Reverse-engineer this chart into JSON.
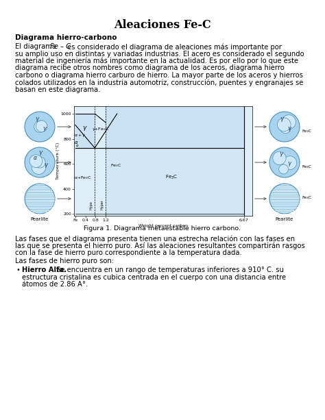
{
  "title": "Aleaciones Fe-C",
  "section_title": "Diagrama hierro-carbono",
  "figure_caption": "Figura 1. Diagrama metaestable hierro carbono.",
  "paragraph2_lines": [
    "Las fases que el diagrama presenta tienen una estrecha relación con las fases en",
    "las que se presenta el hierro puro. Así las aleaciones resultantes compartirán rasgos",
    "con la fase de hierro puro correspondiente a la temperatura dada."
  ],
  "paragraph3": "Las fases de hierro puro son:",
  "bullet_title": "Hierro Alfa.",
  "bullet_text_lines": [
    "Se encuentra en un rango de temperaturas inferiores a 910° C. su",
    "estructura cristalina es cubica centrada en el cuerpo con una distancia entre",
    "átomos de 2.86 A°."
  ],
  "para1_line0_pre": "El diagrama ",
  "para1_line0_italic": "Fe – C",
  "para1_line0_post": " es considerado el diagrama de aleaciones más importante por",
  "para1_lines": [
    "su amplio uso en distintas y variadas industrias. El acero es considerado el segundo",
    "material de ingeniería más importante en la actualidad. Es por ello por lo que este",
    "diagrama recibe otros nombres como diagrama de los aceros, diagrama hierro",
    "carbono o diagrama hierro carburo de hierro. La mayor parte de los aceros y hierros",
    "colados utilizados en la industria automotriz, construcción, puentes y engranajes se",
    "basan en este diagrama."
  ],
  "bg_color": "#ffffff",
  "text_color": "#000000",
  "circle_fill": "#a8d4f0",
  "circle_edge": "#4a90b8",
  "grain_fill": "#d0e8f8",
  "grain_edge": "#4a90b8",
  "hatch_color": "#6baed6",
  "diagram_bg": "#ddeef8",
  "diagram_shade": "#b8d8f0"
}
